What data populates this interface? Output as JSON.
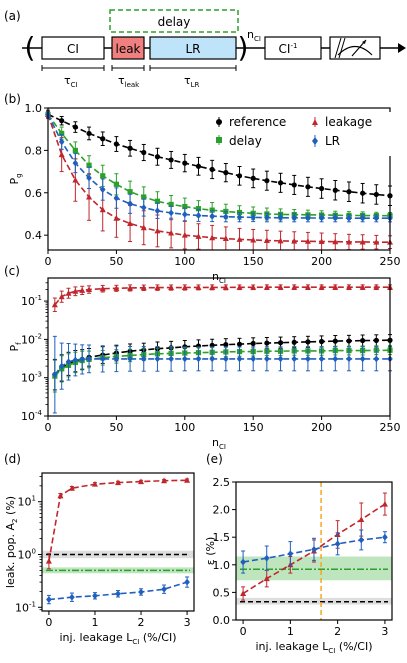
{
  "panel_labels": {
    "a": "(a)",
    "b": "(b)",
    "c": "(c)",
    "d": "(d)",
    "e": "(e)"
  },
  "schematic": {
    "delay": "delay",
    "ci": "CI",
    "leak": "leak",
    "lr": "LR",
    "n_ci": "n",
    "n_ci_sub": "CI",
    "ci_inv": "CI",
    "ci_inv_sup": "-1",
    "tau_ci": "τ",
    "tau_ci_sub": "CI",
    "tau_leak": "τ",
    "tau_leak_sub": "leak",
    "tau_lr": "τ",
    "tau_lr_sub": "LR",
    "colors": {
      "leak_fill": "#f08080",
      "lr_fill": "#bfe3f8",
      "delay_border": "#2ca02c"
    }
  },
  "colors": {
    "reference": "#000000",
    "delay": "#2ca02c",
    "leakage": "#c0272d",
    "lr": "#1f5fbf",
    "vline": "#f5a623",
    "band_green": "#a8dca8",
    "band_gray": "#d3d3d3"
  },
  "chart_data": [
    {
      "id": "b",
      "type": "line",
      "xlabel": "n",
      "xlabel_sub": "CI",
      "ylabel": "P",
      "ylabel_sub": "g",
      "xlim": [
        0,
        250
      ],
      "ylim": [
        0.33,
        1.0
      ],
      "xticks": [
        0,
        50,
        100,
        150,
        200,
        250
      ],
      "yticks": [
        0.4,
        0.6,
        0.8,
        1.0
      ],
      "ytick_labels": [
        "0.4",
        "0.6",
        "0.8",
        "1.0"
      ],
      "legend_position": "top-right",
      "series": [
        {
          "name": "reference",
          "x": [
            0,
            10,
            20,
            30,
            40,
            50,
            60,
            70,
            80,
            90,
            100,
            110,
            120,
            130,
            140,
            150,
            160,
            170,
            180,
            190,
            200,
            210,
            220,
            230,
            240,
            250
          ],
          "y": [
            0.97,
            0.94,
            0.91,
            0.88,
            0.855,
            0.83,
            0.81,
            0.79,
            0.77,
            0.755,
            0.74,
            0.725,
            0.71,
            0.695,
            0.68,
            0.668,
            0.657,
            0.647,
            0.637,
            0.628,
            0.62,
            0.612,
            0.605,
            0.598,
            0.592,
            0.586
          ],
          "err": [
            0.015,
            0.02,
            0.025,
            0.03,
            0.032,
            0.035,
            0.037,
            0.038,
            0.04,
            0.04,
            0.041,
            0.042,
            0.043,
            0.043,
            0.044,
            0.044,
            0.045,
            0.045,
            0.045,
            0.045,
            0.046,
            0.046,
            0.046,
            0.046,
            0.046,
            0.046
          ]
        },
        {
          "name": "delay",
          "x": [
            0,
            10,
            20,
            30,
            40,
            50,
            60,
            70,
            80,
            90,
            100,
            110,
            120,
            130,
            140,
            150,
            160,
            170,
            180,
            190,
            200,
            210,
            220,
            230,
            240,
            250
          ],
          "y": [
            0.97,
            0.88,
            0.8,
            0.73,
            0.68,
            0.64,
            0.605,
            0.58,
            0.56,
            0.545,
            0.535,
            0.525,
            0.518,
            0.512,
            0.507,
            0.503,
            0.5,
            0.498,
            0.497,
            0.496,
            0.495,
            0.494,
            0.493,
            0.493,
            0.492,
            0.492
          ],
          "err": [
            0.015,
            0.03,
            0.04,
            0.045,
            0.05,
            0.05,
            0.05,
            0.048,
            0.045,
            0.042,
            0.04,
            0.038,
            0.036,
            0.034,
            0.032,
            0.03,
            0.028,
            0.026,
            0.024,
            0.022,
            0.02,
            0.019,
            0.018,
            0.017,
            0.016,
            0.015
          ]
        },
        {
          "name": "leakage",
          "x": [
            0,
            10,
            20,
            30,
            40,
            50,
            60,
            70,
            80,
            90,
            100,
            110,
            120,
            130,
            140,
            150,
            160,
            170,
            180,
            190,
            200,
            210,
            220,
            230,
            240,
            250
          ],
          "y": [
            0.97,
            0.78,
            0.66,
            0.58,
            0.52,
            0.48,
            0.455,
            0.435,
            0.42,
            0.41,
            0.4,
            0.394,
            0.388,
            0.384,
            0.38,
            0.377,
            0.375,
            0.373,
            0.372,
            0.371,
            0.37,
            0.369,
            0.368,
            0.368,
            0.367,
            0.367
          ],
          "err": [
            0.02,
            0.08,
            0.1,
            0.11,
            0.1,
            0.09,
            0.085,
            0.08,
            0.075,
            0.07,
            0.065,
            0.06,
            0.058,
            0.055,
            0.052,
            0.05,
            0.048,
            0.046,
            0.044,
            0.042,
            0.04,
            0.038,
            0.036,
            0.034,
            0.032,
            0.03
          ]
        },
        {
          "name": "LR",
          "x": [
            0,
            10,
            20,
            30,
            40,
            50,
            60,
            70,
            80,
            90,
            100,
            110,
            120,
            130,
            140,
            150,
            160,
            170,
            180,
            190,
            200,
            210,
            220,
            230,
            240,
            250
          ],
          "y": [
            0.97,
            0.84,
            0.74,
            0.67,
            0.615,
            0.575,
            0.548,
            0.53,
            0.515,
            0.505,
            0.498,
            0.493,
            0.49,
            0.487,
            0.485,
            0.484,
            0.483,
            0.482,
            0.482,
            0.481,
            0.481,
            0.481,
            0.48,
            0.48,
            0.48,
            0.48
          ],
          "err": [
            0.015,
            0.035,
            0.045,
            0.05,
            0.05,
            0.048,
            0.045,
            0.04,
            0.036,
            0.032,
            0.03,
            0.028,
            0.026,
            0.024,
            0.022,
            0.02,
            0.02,
            0.019,
            0.019,
            0.018,
            0.018,
            0.018,
            0.017,
            0.017,
            0.017,
            0.017
          ]
        }
      ]
    },
    {
      "id": "c",
      "type": "line",
      "scale_y": "log",
      "xlabel": "n",
      "xlabel_sub": "CI",
      "ylabel": "P",
      "ylabel_sub": "f",
      "xlim": [
        0,
        250
      ],
      "ylim": [
        0.0001,
        0.4
      ],
      "xticks": [
        0,
        50,
        100,
        150,
        200,
        250
      ],
      "yticks": [
        0.0001,
        0.001,
        0.01,
        0.1
      ],
      "ytick_labels": [
        {
          "base": "10",
          "exp": "-4"
        },
        {
          "base": "10",
          "exp": "-3"
        },
        {
          "base": "10",
          "exp": "-2"
        },
        {
          "base": "10",
          "exp": "-1"
        }
      ],
      "series": [
        {
          "name": "reference",
          "x": [
            5,
            10,
            15,
            20,
            25,
            30,
            40,
            50,
            60,
            70,
            80,
            90,
            100,
            110,
            120,
            130,
            140,
            150,
            160,
            170,
            180,
            190,
            200,
            210,
            220,
            230,
            240,
            250
          ],
          "y": [
            0.0012,
            0.0018,
            0.0023,
            0.0027,
            0.003,
            0.0034,
            0.0039,
            0.0044,
            0.0049,
            0.0053,
            0.0057,
            0.006,
            0.0064,
            0.0067,
            0.007,
            0.0073,
            0.0075,
            0.0078,
            0.008,
            0.0082,
            0.0084,
            0.0086,
            0.0088,
            0.009,
            0.0091,
            0.0093,
            0.0094,
            0.0095
          ],
          "err_factor": [
            2.5,
            2.2,
            2.0,
            1.9,
            1.8,
            1.7,
            1.65,
            1.6,
            1.55,
            1.5,
            1.5,
            1.48,
            1.46,
            1.45,
            1.44,
            1.43,
            1.42,
            1.41,
            1.4,
            1.4,
            1.4,
            1.4,
            1.4,
            1.4,
            1.4,
            1.4,
            1.4,
            1.4
          ]
        },
        {
          "name": "delay",
          "x": [
            5,
            10,
            15,
            20,
            25,
            30,
            40,
            50,
            60,
            70,
            80,
            90,
            100,
            110,
            120,
            130,
            140,
            150,
            160,
            170,
            180,
            190,
            200,
            210,
            220,
            230,
            240,
            250
          ],
          "y": [
            0.0011,
            0.0017,
            0.0021,
            0.0025,
            0.0028,
            0.003,
            0.0033,
            0.0036,
            0.0038,
            0.004,
            0.0042,
            0.0043,
            0.0044,
            0.0045,
            0.0046,
            0.0047,
            0.0048,
            0.0048,
            0.0049,
            0.0049,
            0.005,
            0.005,
            0.005,
            0.0051,
            0.0051,
            0.0051,
            0.0052,
            0.0052
          ],
          "err_factor": [
            2.6,
            2.2,
            2.0,
            1.85,
            1.75,
            1.65,
            1.55,
            1.5,
            1.45,
            1.42,
            1.4,
            1.38,
            1.36,
            1.35,
            1.34,
            1.33,
            1.32,
            1.31,
            1.3,
            1.3,
            1.3,
            1.3,
            1.3,
            1.3,
            1.3,
            1.3,
            1.3,
            1.3
          ]
        },
        {
          "name": "leakage",
          "x": [
            5,
            10,
            15,
            20,
            25,
            30,
            40,
            50,
            60,
            70,
            80,
            90,
            100,
            110,
            120,
            130,
            140,
            150,
            160,
            170,
            180,
            190,
            200,
            210,
            220,
            230,
            240,
            250
          ],
          "y": [
            0.08,
            0.13,
            0.16,
            0.18,
            0.19,
            0.2,
            0.21,
            0.215,
            0.22,
            0.222,
            0.224,
            0.225,
            0.226,
            0.227,
            0.228,
            0.228,
            0.229,
            0.229,
            0.23,
            0.23,
            0.23,
            0.23,
            0.23,
            0.23,
            0.23,
            0.23,
            0.23,
            0.23
          ],
          "err_factor": [
            1.5,
            1.4,
            1.35,
            1.3,
            1.28,
            1.25,
            1.22,
            1.2,
            1.2,
            1.18,
            1.18,
            1.17,
            1.17,
            1.16,
            1.16,
            1.16,
            1.15,
            1.15,
            1.15,
            1.15,
            1.15,
            1.15,
            1.15,
            1.15,
            1.15,
            1.15,
            1.15,
            1.15
          ]
        },
        {
          "name": "LR",
          "x": [
            5,
            10,
            15,
            20,
            25,
            30,
            40,
            50,
            60,
            70,
            80,
            90,
            100,
            110,
            120,
            130,
            140,
            150,
            160,
            170,
            180,
            190,
            200,
            210,
            220,
            230,
            240,
            250
          ],
          "y": [
            0.0012,
            0.002,
            0.0026,
            0.0029,
            0.003,
            0.0031,
            0.0031,
            0.0031,
            0.0031,
            0.0031,
            0.0031,
            0.0031,
            0.0031,
            0.0031,
            0.0031,
            0.0031,
            0.0031,
            0.0031,
            0.0031,
            0.0031,
            0.0031,
            0.0031,
            0.0031,
            0.0031,
            0.0031,
            0.0031,
            0.0031,
            0.0031
          ],
          "err_factor": [
            10,
            4,
            3,
            2.6,
            2.4,
            2.3,
            2.2,
            2.15,
            2.1,
            2.1,
            2.1,
            2.1,
            2.05,
            2.05,
            2.05,
            2.05,
            2.05,
            2.05,
            2.05,
            2.05,
            2.05,
            2.05,
            2.05,
            2.05,
            2.05,
            2.05,
            2.05,
            2.05
          ]
        }
      ]
    },
    {
      "id": "d",
      "type": "scatter",
      "scale_y": "log",
      "xlabel": "inj. leakage L",
      "xlabel_sub": "CI",
      "xlabel_tail": " (%/CI)",
      "ylabel": "leak. pop. A",
      "ylabel_sub": "2",
      "ylabel_tail": " (%)",
      "xlim": [
        -0.15,
        3.15
      ],
      "ylim": [
        0.085,
        35
      ],
      "xticks": [
        0,
        1,
        2,
        3
      ],
      "yticks": [
        0.1,
        1,
        10
      ],
      "ytick_labels": [
        {
          "base": "10",
          "exp": "-1"
        },
        {
          "base": "10",
          "exp": "0"
        },
        {
          "base": "10",
          "exp": "1"
        }
      ],
      "bands": [
        {
          "name": "reference",
          "center": 1.0,
          "low": 0.85,
          "high": 1.18,
          "color": "#000000",
          "style": "dashed"
        },
        {
          "name": "delay",
          "center": 0.5,
          "low": 0.44,
          "high": 0.57,
          "color": "#2ca02c",
          "style": "dashdot"
        }
      ],
      "series": [
        {
          "name": "leakage",
          "x": [
            0,
            0.25,
            0.5,
            1,
            1.5,
            2,
            2.5,
            3
          ],
          "y": [
            0.75,
            13,
            18,
            21.5,
            23,
            24,
            25,
            25.5
          ],
          "err_factor": [
            1.4,
            1.1,
            1.08,
            1.07,
            1.06,
            1.06,
            1.06,
            1.06
          ]
        },
        {
          "name": "LR",
          "x": [
            0,
            0.5,
            1,
            1.5,
            2,
            2.5,
            3
          ],
          "y": [
            0.14,
            0.155,
            0.165,
            0.18,
            0.195,
            0.22,
            0.3
          ],
          "err_factor": [
            1.2,
            1.2,
            1.15,
            1.15,
            1.15,
            1.2,
            1.25
          ]
        }
      ]
    },
    {
      "id": "e",
      "type": "scatter",
      "xlabel": "inj. leakage L",
      "xlabel_sub": "CI",
      "xlabel_tail": " (%/CI)",
      "ylabel": "ε (%)",
      "xlim": [
        -0.15,
        3.15
      ],
      "ylim": [
        0,
        2.5
      ],
      "xticks": [
        0,
        1,
        2,
        3
      ],
      "yticks": [
        0.0,
        0.5,
        1.0,
        1.5,
        2.0,
        2.5
      ],
      "ytick_labels": [
        "0.0",
        "0.5",
        "1.0",
        "1.5",
        "2.0",
        "2.5"
      ],
      "vline": 1.65,
      "bands": [
        {
          "name": "reference",
          "center": 0.33,
          "low": 0.28,
          "high": 0.4,
          "color": "#000000",
          "style": "dashed"
        },
        {
          "name": "delay",
          "center": 0.92,
          "low": 0.72,
          "high": 1.15,
          "color": "#2ca02c",
          "style": "dashdot"
        }
      ],
      "series": [
        {
          "name": "leakage",
          "x": [
            0,
            0.5,
            1,
            1.5,
            2,
            2.5,
            3
          ],
          "y": [
            0.48,
            0.75,
            1.0,
            1.25,
            1.55,
            1.82,
            2.1
          ],
          "err": [
            0.12,
            0.15,
            0.15,
            0.2,
            0.25,
            0.3,
            0.2
          ]
        },
        {
          "name": "LR",
          "x": [
            0,
            0.5,
            1,
            1.5,
            2,
            2.5,
            3
          ],
          "y": [
            1.05,
            1.12,
            1.2,
            1.28,
            1.38,
            1.45,
            1.5
          ],
          "err": [
            0.2,
            0.22,
            0.22,
            0.2,
            0.2,
            0.18,
            0.1
          ]
        }
      ]
    }
  ]
}
